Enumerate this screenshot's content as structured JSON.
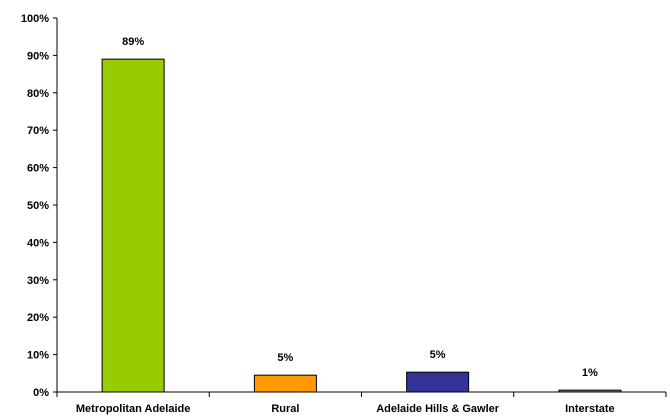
{
  "chart_data": {
    "type": "bar",
    "categories": [
      "Metropolitan Adelaide",
      "Rural",
      "Adelaide Hills & Gawler",
      "Interstate"
    ],
    "values": [
      89,
      4.5,
      5.3,
      0.5
    ],
    "data_labels": [
      "89%",
      "5%",
      "5%",
      "1%"
    ],
    "colors": [
      "#99cc00",
      "#ff9900",
      "#333399",
      "#808080"
    ],
    "ylim": [
      0,
      100
    ],
    "yticks": [
      0,
      10,
      20,
      30,
      40,
      50,
      60,
      70,
      80,
      90,
      100
    ],
    "ytick_labels": [
      "0%",
      "10%",
      "20%",
      "30%",
      "40%",
      "50%",
      "60%",
      "70%",
      "80%",
      "90%",
      "100%"
    ],
    "title": "",
    "xlabel": "",
    "ylabel": "",
    "grid": false,
    "legend": "none"
  }
}
